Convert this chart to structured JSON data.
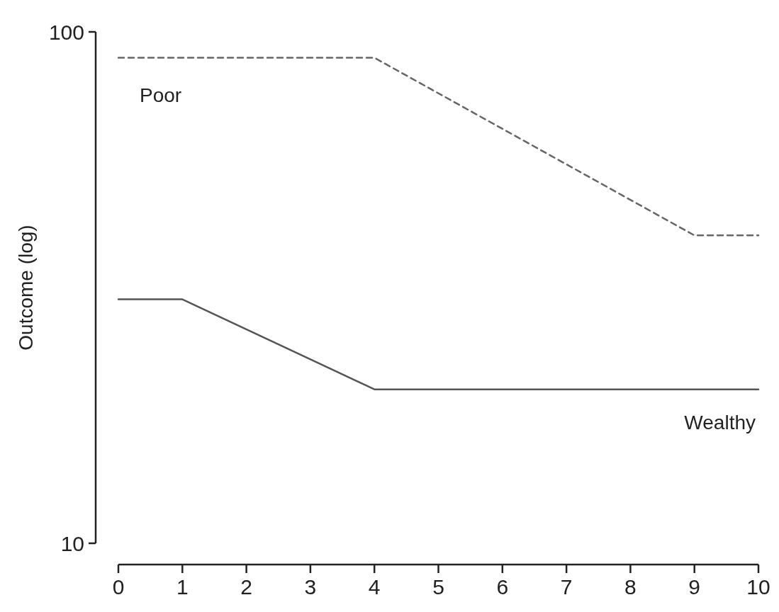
{
  "chart_data": {
    "type": "line",
    "ylabel": "Outcome (log)",
    "log": true,
    "xlim": [
      0,
      10
    ],
    "xticks": [
      0,
      1,
      2,
      3,
      4,
      5,
      6,
      7,
      8,
      9,
      10
    ],
    "ylim": [
      10,
      100
    ],
    "yticks": [
      10,
      100
    ],
    "grid": false,
    "legend": false,
    "marker": "none",
    "series": [
      {
        "name": "Poor",
        "color": "#666666",
        "line_style": "dashed",
        "x": [
          0,
          4,
          9,
          10
        ],
        "values": [
          89,
          89,
          40,
          40
        ]
      },
      {
        "name": "Wealthy",
        "color": "#555555",
        "line_style": "solid",
        "x": [
          0,
          1,
          4,
          10
        ],
        "values": [
          30,
          30,
          20,
          20
        ]
      }
    ]
  }
}
